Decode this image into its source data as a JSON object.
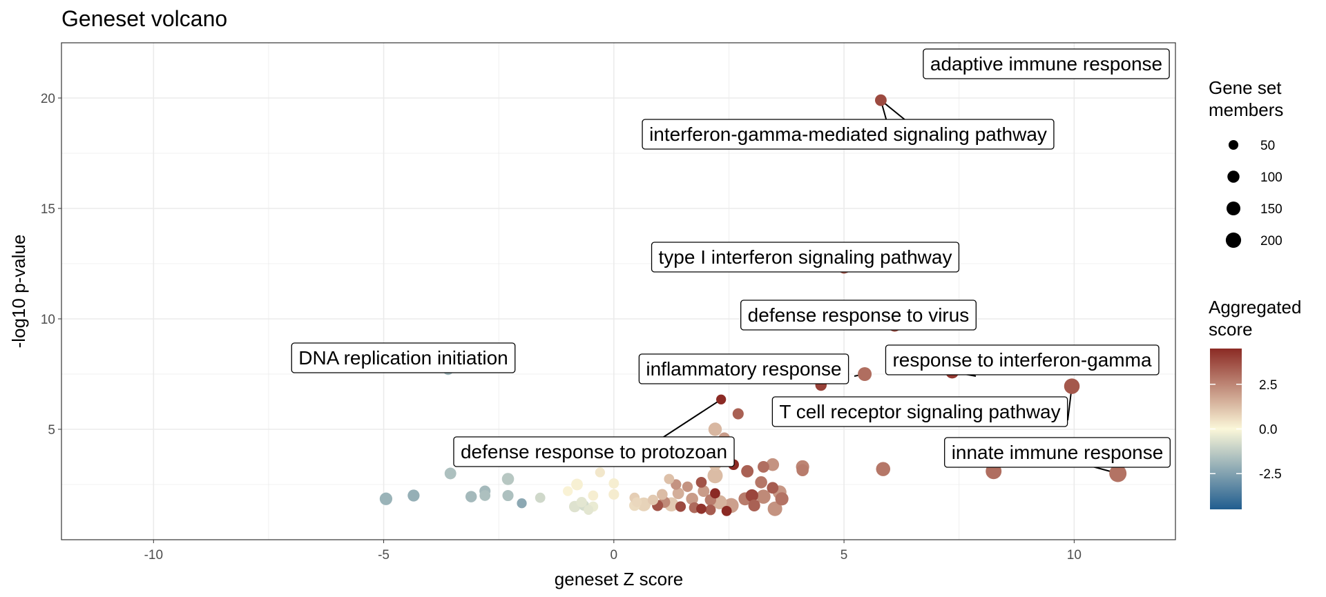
{
  "chart_data": {
    "type": "scatter",
    "title": "Geneset volcano",
    "xlabel": "geneset Z score",
    "ylabel": "-log10 p-value",
    "xlim": [
      -12,
      12.2
    ],
    "ylim": [
      0,
      22.5
    ],
    "xticks": [
      -10,
      -5,
      0,
      5,
      10
    ],
    "yticks": [
      5,
      10,
      15,
      20
    ],
    "grid": true,
    "legend_size": {
      "title": "Gene set\nmembers",
      "values": [
        50,
        100,
        150,
        200
      ]
    },
    "legend_color": {
      "title": "Aggregated\nscore",
      "ticks": [
        2.5,
        0.0,
        -2.5
      ],
      "tick_labels": [
        "2.5",
        "0.0",
        "-2.5"
      ],
      "range": [
        -4.5,
        4.5
      ],
      "low_color": "#215d8f",
      "mid_color": "#fbf7d9",
      "high_color": "#8b2a24"
    },
    "points": [
      {
        "x": 5.8,
        "y": 19.9,
        "size": 60,
        "score": 3.8
      },
      {
        "x": 5.0,
        "y": 12.3,
        "size": 50,
        "score": 3.5
      },
      {
        "x": 6.1,
        "y": 9.7,
        "size": 75,
        "score": 3.6
      },
      {
        "x": 7.35,
        "y": 7.6,
        "size": 95,
        "score": 4.2
      },
      {
        "x": 5.45,
        "y": 7.5,
        "size": 110,
        "score": 3.0
      },
      {
        "x": 4.5,
        "y": 7.0,
        "size": 55,
        "score": 4.0
      },
      {
        "x": 9.95,
        "y": 6.95,
        "size": 160,
        "score": 3.5
      },
      {
        "x": 2.33,
        "y": 6.35,
        "size": 30,
        "score": 4.5
      },
      {
        "x": -3.6,
        "y": 7.7,
        "size": 40,
        "score": -2.0
      },
      {
        "x": 2.7,
        "y": 5.7,
        "size": 50,
        "score": 3.3
      },
      {
        "x": 3.65,
        "y": 5.4,
        "size": 80,
        "score": 2.4
      },
      {
        "x": 2.2,
        "y": 5.0,
        "size": 100,
        "score": 1.4
      },
      {
        "x": 2.4,
        "y": 4.6,
        "size": 55,
        "score": 2.0
      },
      {
        "x": 1.35,
        "y": 3.8,
        "size": 30,
        "score": 4.3
      },
      {
        "x": 1.1,
        "y": 3.6,
        "size": 55,
        "score": 1.0
      },
      {
        "x": 2.0,
        "y": 3.85,
        "size": 40,
        "score": 4.0
      },
      {
        "x": 2.2,
        "y": 3.4,
        "size": 70,
        "score": 1.2
      },
      {
        "x": 2.6,
        "y": 3.4,
        "size": 45,
        "score": 4.5
      },
      {
        "x": 2.9,
        "y": 3.1,
        "size": 75,
        "score": 3.3
      },
      {
        "x": 3.25,
        "y": 3.3,
        "size": 60,
        "score": 3.0
      },
      {
        "x": 3.45,
        "y": 3.4,
        "size": 85,
        "score": 2.2
      },
      {
        "x": 4.1,
        "y": 3.3,
        "size": 95,
        "score": 2.5
      },
      {
        "x": 4.1,
        "y": 3.15,
        "size": 70,
        "score": 2.7
      },
      {
        "x": 5.85,
        "y": 3.2,
        "size": 120,
        "score": 2.8
      },
      {
        "x": 8.25,
        "y": 3.1,
        "size": 170,
        "score": 3.0
      },
      {
        "x": 10.95,
        "y": 3.0,
        "size": 220,
        "score": 2.9
      },
      {
        "x": 2.2,
        "y": 2.9,
        "size": 150,
        "score": 1.3
      },
      {
        "x": 1.9,
        "y": 2.6,
        "size": 45,
        "score": 3.6
      },
      {
        "x": 1.6,
        "y": 2.4,
        "size": 40,
        "score": 2.2
      },
      {
        "x": 1.95,
        "y": 2.2,
        "size": 60,
        "score": 2.0
      },
      {
        "x": 2.2,
        "y": 2.1,
        "size": 35,
        "score": 4.5
      },
      {
        "x": 3.2,
        "y": 2.6,
        "size": 70,
        "score": 2.8
      },
      {
        "x": 3.45,
        "y": 2.35,
        "size": 60,
        "score": 3.4
      },
      {
        "x": 3.6,
        "y": 2.15,
        "size": 110,
        "score": 2.1
      },
      {
        "x": 3.0,
        "y": 2.0,
        "size": 80,
        "score": 3.9
      },
      {
        "x": 2.85,
        "y": 1.85,
        "size": 90,
        "score": 2.7
      },
      {
        "x": 3.25,
        "y": 1.95,
        "size": 120,
        "score": 2.4
      },
      {
        "x": 3.65,
        "y": 1.85,
        "size": 95,
        "score": 2.9
      },
      {
        "x": 3.5,
        "y": 1.4,
        "size": 130,
        "score": 2.2
      },
      {
        "x": 3.05,
        "y": 1.55,
        "size": 65,
        "score": 3.3
      },
      {
        "x": 2.55,
        "y": 1.55,
        "size": 140,
        "score": 1.9
      },
      {
        "x": 2.3,
        "y": 1.7,
        "size": 120,
        "score": 1.5
      },
      {
        "x": 2.1,
        "y": 1.8,
        "size": 55,
        "score": 2.7
      },
      {
        "x": 2.45,
        "y": 1.3,
        "size": 35,
        "score": 4.6
      },
      {
        "x": 2.1,
        "y": 1.35,
        "size": 40,
        "score": 3.4
      },
      {
        "x": 1.9,
        "y": 1.4,
        "size": 35,
        "score": 4.3
      },
      {
        "x": 1.75,
        "y": 1.45,
        "size": 45,
        "score": 3.1
      },
      {
        "x": 1.45,
        "y": 1.5,
        "size": 40,
        "score": 3.8
      },
      {
        "x": 1.25,
        "y": 1.6,
        "size": 120,
        "score": 1.0
      },
      {
        "x": 1.1,
        "y": 1.7,
        "size": 55,
        "score": 2.4
      },
      {
        "x": 1.05,
        "y": 2.05,
        "size": 45,
        "score": 1.3
      },
      {
        "x": 1.4,
        "y": 2.1,
        "size": 60,
        "score": 1.6
      },
      {
        "x": 1.7,
        "y": 1.85,
        "size": 70,
        "score": 2.0
      },
      {
        "x": 0.95,
        "y": 1.55,
        "size": 50,
        "score": 3.6
      },
      {
        "x": 0.85,
        "y": 1.8,
        "size": 40,
        "score": 1.0
      },
      {
        "x": 0.65,
        "y": 1.6,
        "size": 110,
        "score": 0.8
      },
      {
        "x": 0.45,
        "y": 1.55,
        "size": 45,
        "score": 0.6
      },
      {
        "x": 0.45,
        "y": 1.9,
        "size": 35,
        "score": 0.9
      },
      {
        "x": 0.5,
        "y": 1.7,
        "size": 30,
        "score": 0.7
      },
      {
        "x": 1.2,
        "y": 2.75,
        "size": 35,
        "score": 1.2
      },
      {
        "x": 1.35,
        "y": 2.5,
        "size": 40,
        "score": 2.2
      },
      {
        "x": 0.0,
        "y": 2.05,
        "size": 40,
        "score": 0.25
      },
      {
        "x": 0.0,
        "y": 2.55,
        "size": 35,
        "score": 0.2
      },
      {
        "x": -0.3,
        "y": 3.05,
        "size": 30,
        "score": 0.35
      },
      {
        "x": -0.45,
        "y": 2.0,
        "size": 35,
        "score": 0.2
      },
      {
        "x": -0.45,
        "y": 1.5,
        "size": 35,
        "score": -0.35
      },
      {
        "x": -0.55,
        "y": 1.35,
        "size": 30,
        "score": -0.5
      },
      {
        "x": -0.65,
        "y": 1.55,
        "size": 40,
        "score": -0.8
      },
      {
        "x": -0.85,
        "y": 1.5,
        "size": 55,
        "score": -0.6
      },
      {
        "x": -0.7,
        "y": 1.7,
        "size": 40,
        "score": -0.5
      },
      {
        "x": -0.8,
        "y": 2.5,
        "size": 60,
        "score": 0.15
      },
      {
        "x": -1.0,
        "y": 2.2,
        "size": 30,
        "score": 0.1
      },
      {
        "x": -1.6,
        "y": 1.9,
        "size": 35,
        "score": -0.9
      },
      {
        "x": -2.0,
        "y": 1.65,
        "size": 30,
        "score": -2.3
      },
      {
        "x": -2.3,
        "y": 2.0,
        "size": 50,
        "score": -1.6
      },
      {
        "x": -2.3,
        "y": 2.75,
        "size": 70,
        "score": -1.4
      },
      {
        "x": -2.8,
        "y": 2.2,
        "size": 50,
        "score": -1.8
      },
      {
        "x": -2.8,
        "y": 2.0,
        "size": 45,
        "score": -1.6
      },
      {
        "x": -3.1,
        "y": 1.95,
        "size": 55,
        "score": -1.8
      },
      {
        "x": -3.55,
        "y": 3.0,
        "size": 60,
        "score": -1.6
      },
      {
        "x": -4.35,
        "y": 2.0,
        "size": 65,
        "score": -2.1
      },
      {
        "x": -4.95,
        "y": 1.85,
        "size": 80,
        "score": -2.0
      }
    ],
    "annotations": [
      {
        "text": "adaptive immune response",
        "px": 5.8,
        "py": 19.9
      },
      {
        "text": "interferon-gamma-mediated signaling pathway",
        "px": 5.8,
        "py": 19.9
      },
      {
        "text": "type I interferon signaling pathway",
        "px": 5.0,
        "py": 12.3
      },
      {
        "text": "defense response to virus",
        "px": 6.1,
        "py": 9.7
      },
      {
        "text": "DNA replication initiation",
        "px": -3.6,
        "py": 7.7
      },
      {
        "text": "inflammatory response",
        "px": 5.45,
        "py": 7.5
      },
      {
        "text": "response to interferon-gamma",
        "px": 7.35,
        "py": 7.6
      },
      {
        "text": "T cell receptor signaling pathway",
        "px": 9.95,
        "py": 6.95
      },
      {
        "text": "innate immune response",
        "px": 10.95,
        "py": 3.0
      },
      {
        "text": "defense response to protozoan",
        "px": 2.33,
        "py": 6.35
      }
    ]
  }
}
